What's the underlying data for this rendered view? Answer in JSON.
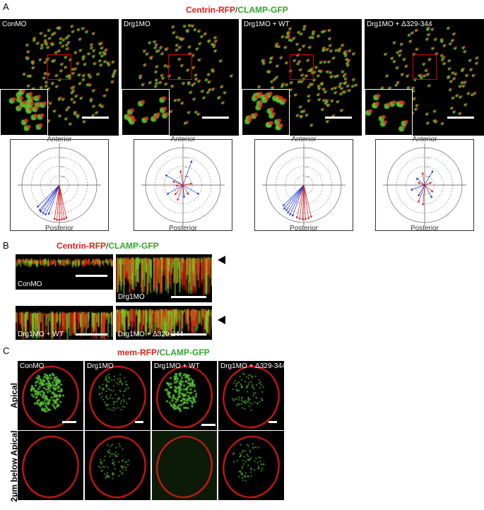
{
  "panel_a": {
    "label": "A",
    "title_red": "Centrin-RFP",
    "title_sep": "/",
    "title_green": "CLAMP-GFP",
    "images": [
      "ConMO",
      "Drg1MO",
      "Drg1MO + WT",
      "Drg1MO + Δ329-344"
    ],
    "polar": {
      "top_label": "Anterior",
      "bottom_label": "Posterior",
      "ring_ticks": [
        "0.25",
        "0.5",
        "0.75",
        "1"
      ],
      "colors": {
        "red": "#d01818",
        "blue": "#1a2fd0"
      },
      "plots": [
        {
          "arrows": [
            [
              250,
              0.85,
              "blue"
            ],
            [
              245,
              0.9,
              "blue"
            ],
            [
              240,
              0.9,
              "blue"
            ],
            [
              235,
              0.9,
              "blue"
            ],
            [
              232,
              0.88,
              "blue"
            ],
            [
              225,
              0.85,
              "blue"
            ],
            [
              262,
              0.95,
              "red"
            ],
            [
              266,
              0.97,
              "red"
            ],
            [
              270,
              0.97,
              "red"
            ],
            [
              274,
              0.96,
              "red"
            ],
            [
              278,
              0.95,
              "red"
            ],
            [
              282,
              0.93,
              "red"
            ]
          ]
        },
        {
          "arrows": [
            [
              70,
              0.7,
              "blue"
            ],
            [
              150,
              0.55,
              "blue"
            ],
            [
              210,
              0.5,
              "blue"
            ],
            [
              330,
              0.5,
              "blue"
            ],
            [
              275,
              0.35,
              "blue"
            ],
            [
              100,
              0.4,
              "red"
            ],
            [
              160,
              0.3,
              "red"
            ],
            [
              230,
              0.35,
              "red"
            ],
            [
              250,
              0.45,
              "red"
            ],
            [
              10,
              0.25,
              "red"
            ],
            [
              300,
              0.3,
              "red"
            ],
            [
              185,
              0.2,
              "red"
            ]
          ]
        },
        {
          "arrows": [
            [
              225,
              0.8,
              "blue"
            ],
            [
              230,
              0.85,
              "blue"
            ],
            [
              235,
              0.85,
              "blue"
            ],
            [
              240,
              0.88,
              "blue"
            ],
            [
              245,
              0.9,
              "blue"
            ],
            [
              250,
              0.9,
              "blue"
            ],
            [
              258,
              0.92,
              "red"
            ],
            [
              263,
              0.94,
              "red"
            ],
            [
              268,
              0.95,
              "red"
            ],
            [
              273,
              0.95,
              "red"
            ],
            [
              278,
              0.93,
              "red"
            ],
            [
              283,
              0.9,
              "red"
            ]
          ]
        },
        {
          "arrows": [
            [
              60,
              0.45,
              "blue"
            ],
            [
              200,
              0.4,
              "blue"
            ],
            [
              240,
              0.35,
              "blue"
            ],
            [
              300,
              0.4,
              "blue"
            ],
            [
              140,
              0.3,
              "blue"
            ],
            [
              265,
              0.55,
              "red"
            ],
            [
              250,
              0.5,
              "red"
            ],
            [
              100,
              0.35,
              "red"
            ],
            [
              160,
              0.2,
              "red"
            ],
            [
              320,
              0.3,
              "red"
            ],
            [
              20,
              0.2,
              "red"
            ]
          ]
        }
      ]
    }
  },
  "panel_b": {
    "label": "B",
    "title_red": "Centrin-RFP",
    "title_sep": "/",
    "title_green": "CLAMP-GFP",
    "images": [
      "ConMO",
      "Drg1MO",
      "Drg1MO + WT",
      "Drg1MO + Δ329-344"
    ]
  },
  "panel_c": {
    "label": "C",
    "title_red": "mem-RFP",
    "title_sep": "/",
    "title_green": "CLAMP-GFP",
    "columns": [
      "ConMO",
      "Drg1MO",
      "Drg1MO + WT",
      "Drg1MO + Δ329-344"
    ],
    "rows": [
      "Apical",
      "2μm below Apical"
    ]
  }
}
